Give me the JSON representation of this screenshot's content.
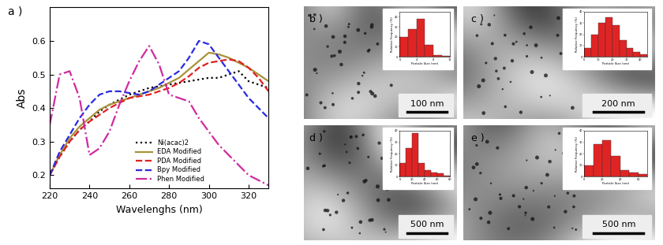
{
  "chart_data": [
    {
      "type": "line",
      "label": "a )",
      "xlabel": "Wavelenghs (nm)",
      "ylabel": "Abs",
      "x": [
        220,
        225,
        230,
        235,
        240,
        245,
        250,
        255,
        260,
        265,
        270,
        275,
        280,
        285,
        290,
        295,
        300,
        305,
        310,
        315,
        320,
        325,
        330
      ],
      "series": [
        {
          "name": "Ni(acac)2",
          "color": "#000000",
          "line_style": "dotted",
          "values": [
            0.2,
            0.255,
            0.3,
            0.335,
            0.36,
            0.39,
            0.41,
            0.425,
            0.44,
            0.45,
            0.46,
            0.465,
            0.47,
            0.475,
            0.48,
            0.485,
            0.49,
            0.49,
            0.5,
            0.51,
            0.48,
            0.47,
            0.46
          ]
        },
        {
          "name": "EDA Modified",
          "color": "#a8923a",
          "line_style": "solid",
          "values": [
            0.2,
            0.26,
            0.31,
            0.345,
            0.37,
            0.395,
            0.41,
            0.42,
            0.43,
            0.44,
            0.45,
            0.46,
            0.475,
            0.49,
            0.515,
            0.54,
            0.565,
            0.56,
            0.55,
            0.535,
            0.52,
            0.5,
            0.48
          ]
        },
        {
          "name": "PDA Modified",
          "color": "#e02020",
          "line_style": "dashed",
          "values": [
            0.2,
            0.255,
            0.3,
            0.335,
            0.36,
            0.38,
            0.4,
            0.415,
            0.43,
            0.435,
            0.44,
            0.45,
            0.46,
            0.475,
            0.495,
            0.52,
            0.535,
            0.54,
            0.545,
            0.54,
            0.52,
            0.49,
            0.45
          ]
        },
        {
          "name": "Bpy Modified",
          "color": "#2a2ae0",
          "line_style": "dashed",
          "values": [
            0.2,
            0.27,
            0.32,
            0.37,
            0.41,
            0.44,
            0.45,
            0.45,
            0.445,
            0.44,
            0.45,
            0.47,
            0.49,
            0.51,
            0.55,
            0.6,
            0.59,
            0.55,
            0.51,
            0.47,
            0.43,
            0.4,
            0.37
          ]
        },
        {
          "name": "Phen Modified",
          "color": "#d02aa0",
          "line_style": "dashdot",
          "values": [
            0.35,
            0.5,
            0.51,
            0.43,
            0.26,
            0.28,
            0.33,
            0.41,
            0.48,
            0.54,
            0.585,
            0.53,
            0.44,
            0.43,
            0.42,
            0.37,
            0.33,
            0.29,
            0.26,
            0.23,
            0.2,
            0.185,
            0.17
          ]
        }
      ],
      "xlim": [
        220,
        330
      ],
      "xticks": [
        220,
        240,
        260,
        280,
        300,
        320
      ],
      "ylim": [
        0.16,
        0.7
      ],
      "yticks": [
        0.2,
        0.3,
        0.4,
        0.5,
        0.6
      ],
      "legend": "lower center"
    },
    {
      "type": "histogram",
      "label": "b )",
      "scale_bar": "100 nm",
      "xlabel": "Particle Size (nm)",
      "ylabel": "Relative Frequency (%)",
      "color": "#e02424",
      "bins": [
        0,
        2,
        4,
        6,
        8,
        10,
        12
      ],
      "counts": [
        20,
        28,
        38,
        12,
        2,
        1
      ],
      "xlim": [
        0,
        12
      ],
      "xticks": [
        0,
        4,
        8,
        12
      ],
      "ylim": [
        0,
        45
      ],
      "yticks": [
        0,
        10,
        20,
        30,
        40
      ]
    },
    {
      "type": "histogram",
      "label": "c )",
      "scale_bar": "200 nm",
      "xlabel": "Particle Size (nm)",
      "ylabel": "Relative Frequency (%)",
      "color": "#e02424",
      "bins": [
        0,
        5,
        10,
        15,
        20,
        25,
        30,
        35,
        40,
        45
      ],
      "counts": [
        8,
        20,
        30,
        35,
        28,
        15,
        8,
        4,
        2
      ],
      "xlim": [
        0,
        45
      ],
      "xticks": [
        0,
        10,
        20,
        30,
        40
      ],
      "ylim": [
        0,
        40
      ],
      "yticks": [
        0,
        10,
        20,
        30,
        40
      ]
    },
    {
      "type": "histogram",
      "label": "d )",
      "scale_bar": "500 nm",
      "xlabel": "Particle Size (nm)",
      "ylabel": "Relative Frequency (%)",
      "color": "#e02424",
      "bins": [
        0,
        10,
        20,
        30,
        40,
        50,
        60,
        70,
        80
      ],
      "counts": [
        12,
        25,
        38,
        12,
        6,
        4,
        3,
        1
      ],
      "xlim": [
        0,
        80
      ],
      "xticks": [
        0,
        20,
        40,
        60,
        80
      ],
      "ylim": [
        0,
        40
      ],
      "yticks": [
        0,
        10,
        20,
        30,
        40
      ]
    },
    {
      "type": "histogram",
      "label": "e )",
      "scale_bar": "500 nm",
      "xlabel": "Particle Size (nm)",
      "ylabel": "Relative Frequency (%)",
      "color": "#e02424",
      "bins": [
        0,
        10,
        20,
        30,
        40,
        50,
        60,
        70
      ],
      "counts": [
        10,
        28,
        32,
        18,
        6,
        4,
        2
      ],
      "xlim": [
        0,
        70
      ],
      "xticks": [
        0,
        20,
        40,
        60
      ],
      "ylim": [
        0,
        40
      ],
      "yticks": [
        0,
        10,
        20,
        30,
        40
      ]
    }
  ]
}
